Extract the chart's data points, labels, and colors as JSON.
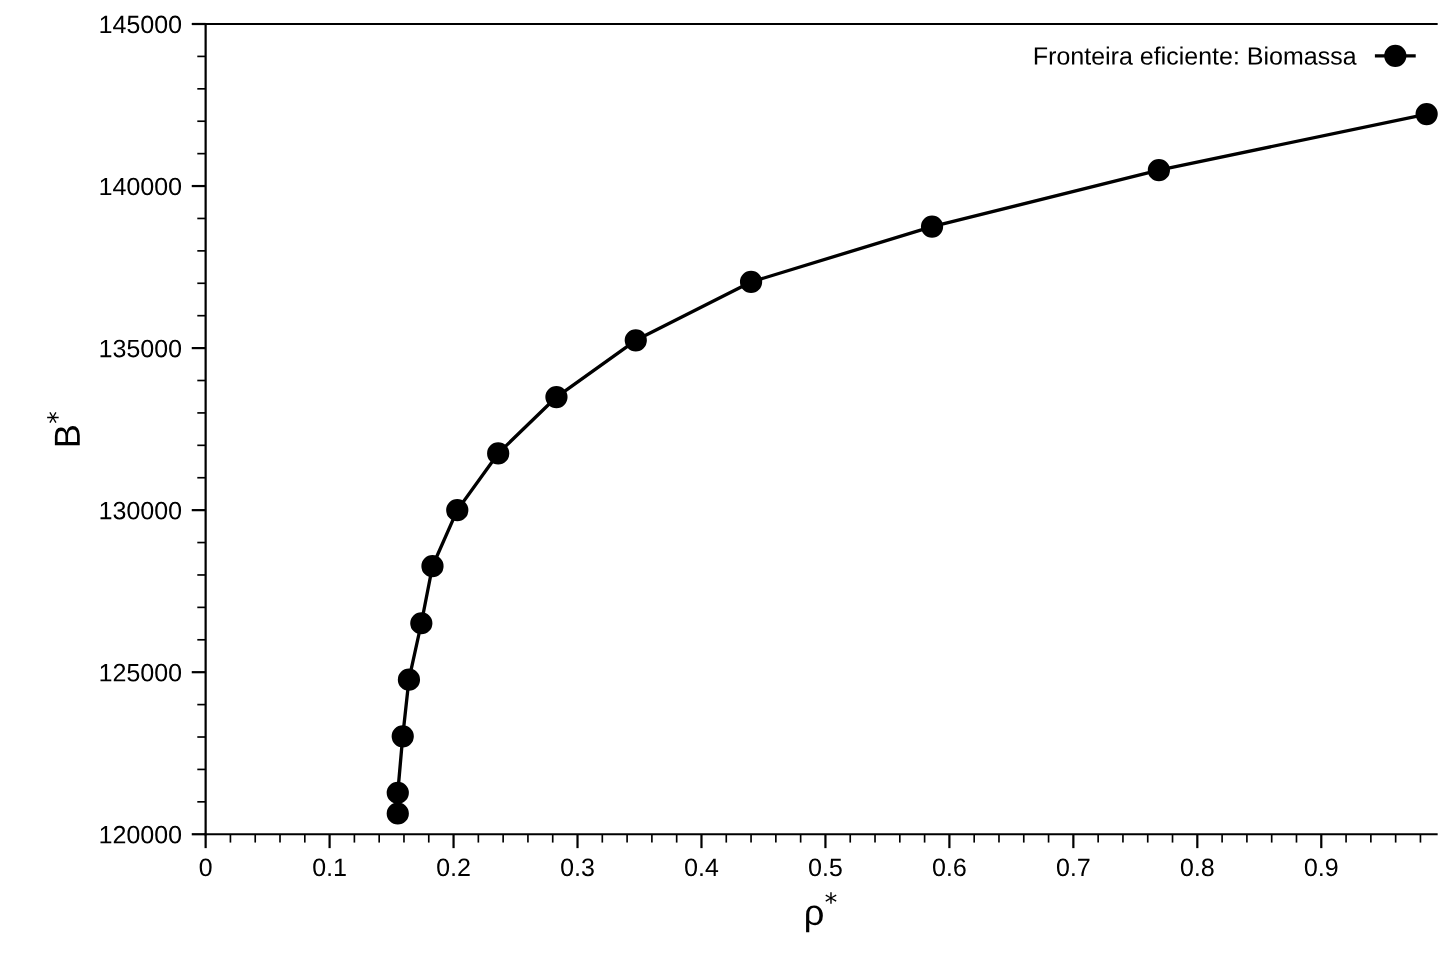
{
  "chart_data": {
    "type": "line",
    "xlabel": "ρ$^{*}$",
    "ylabel": "B$^{*}$",
    "x": [
      0.155,
      0.155,
      0.159,
      0.164,
      0.174,
      0.183,
      0.203,
      0.236,
      0.283,
      0.347,
      0.44,
      0.586,
      0.769,
      0.985
    ],
    "series": [
      {
        "name": "Fronteira eficiente: Biomassa",
        "color": "#000000",
        "values": [
          120640,
          121280,
          123020,
          124770,
          126510,
          128270,
          130000,
          131750,
          133490,
          135240,
          137040,
          138750,
          140490,
          142220
        ]
      }
    ],
    "xlim": [
      0,
      0.993
    ],
    "xticks": [
      0,
      0.1,
      0.2,
      0.3,
      0.4,
      0.5,
      0.6,
      0.7,
      0.8,
      0.9
    ],
    "ylim": [
      120000,
      145000
    ],
    "yticks": [
      120000,
      125000,
      130000,
      135000,
      140000,
      145000
    ],
    "grid": false,
    "legend": "top right",
    "marker": "circle",
    "line_style": "solid"
  }
}
